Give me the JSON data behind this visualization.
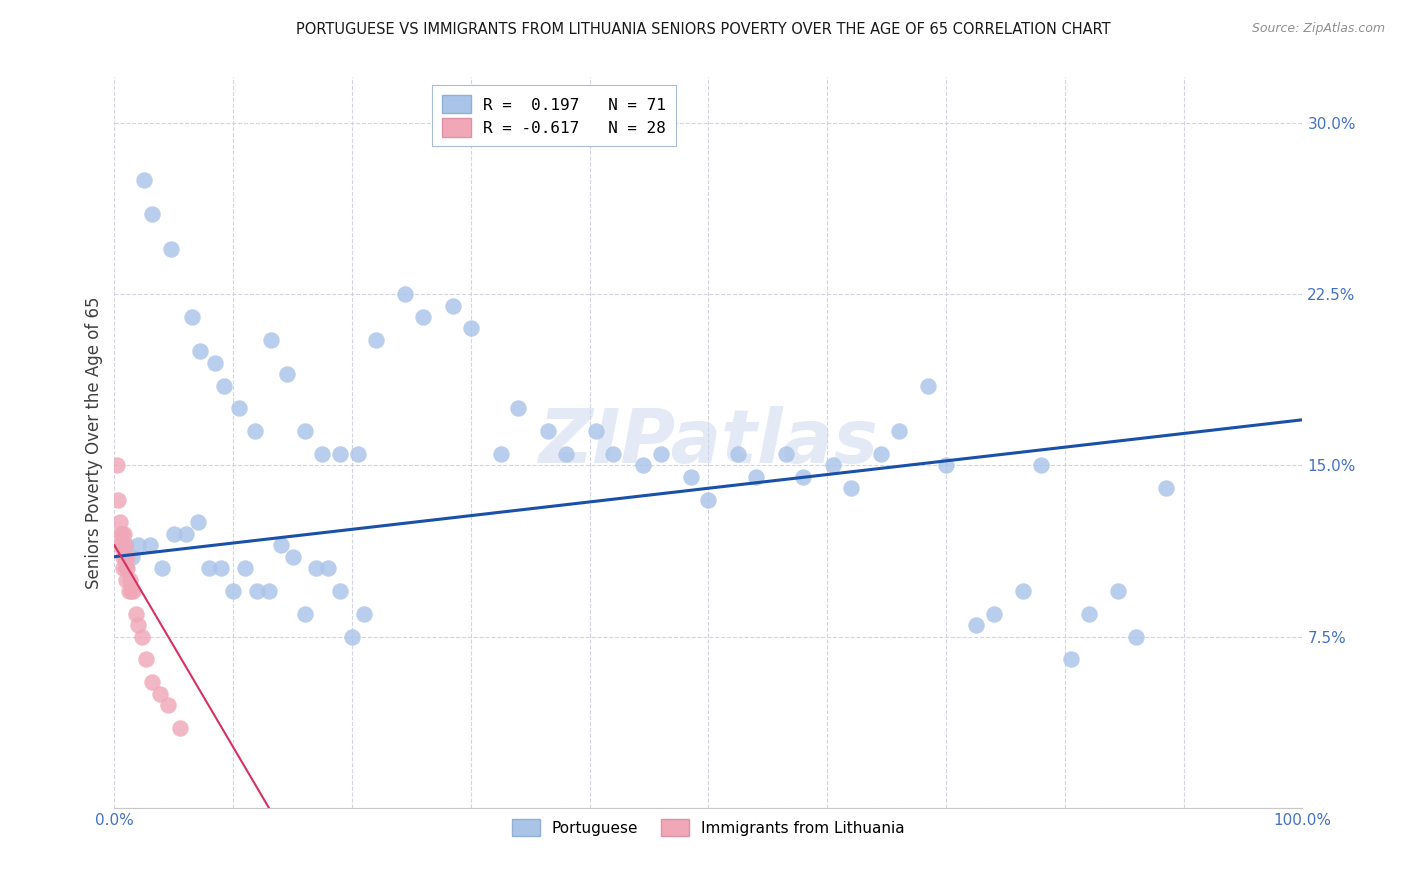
{
  "title": "PORTUGUESE VS IMMIGRANTS FROM LITHUANIA SENIORS POVERTY OVER THE AGE OF 65 CORRELATION CHART",
  "source": "Source: ZipAtlas.com",
  "ylabel": "Seniors Poverty Over the Age of 65",
  "xlim": [
    0,
    100
  ],
  "ylim": [
    0,
    32
  ],
  "ytick_vals": [
    0,
    7.5,
    15.0,
    22.5,
    30.0
  ],
  "ytick_labels": [
    "",
    "7.5%",
    "15.0%",
    "22.5%",
    "30.0%"
  ],
  "xtick_vals": [
    0,
    10,
    20,
    30,
    40,
    50,
    60,
    70,
    80,
    90,
    100
  ],
  "xtick_labels": [
    "0.0%",
    "",
    "",
    "",
    "",
    "",
    "",
    "",
    "",
    "",
    "100.0%"
  ],
  "blue_color": "#aac4e8",
  "pink_color": "#f0a8b8",
  "blue_line_color": "#1a50a8",
  "pink_line_color": "#d83060",
  "tick_color": "#4472c4",
  "grid_color": "#d0d0dc",
  "watermark_text": "ZIPatlas",
  "watermark_color": "#ccd8ee",
  "legend_top_R_blue": "R =  0.197   N = 71",
  "legend_top_R_pink": "R = -0.617   N = 28",
  "legend_bottom": [
    "Portuguese",
    "Immigrants from Lithuania"
  ],
  "blue_x": [
    2.5,
    3.2,
    4.8,
    6.5,
    7.2,
    8.5,
    9.2,
    10.5,
    11.8,
    13.2,
    14.5,
    16.0,
    17.5,
    19.0,
    20.5,
    22.0,
    24.5,
    26.0,
    28.5,
    30.0,
    32.5,
    34.0,
    36.5,
    38.0,
    40.5,
    42.0,
    44.5,
    46.0,
    48.5,
    50.0,
    52.5,
    54.0,
    56.5,
    58.0,
    60.5,
    62.0,
    64.5,
    66.0,
    68.5,
    70.0,
    72.5,
    74.0,
    76.5,
    78.0,
    80.5,
    82.0,
    84.5,
    86.0,
    88.5,
    1.0,
    1.5,
    2.0,
    3.0,
    4.0,
    5.0,
    6.0,
    7.0,
    8.0,
    9.0,
    10.0,
    11.0,
    12.0,
    13.0,
    14.0,
    15.0,
    16.0,
    17.0,
    18.0,
    19.0,
    20.0,
    21.0
  ],
  "blue_y": [
    27.5,
    26.0,
    24.5,
    21.5,
    20.0,
    19.5,
    18.5,
    17.5,
    16.5,
    20.5,
    19.0,
    16.5,
    15.5,
    15.5,
    15.5,
    20.5,
    22.5,
    21.5,
    22.0,
    21.0,
    15.5,
    17.5,
    16.5,
    15.5,
    16.5,
    15.5,
    15.0,
    15.5,
    14.5,
    13.5,
    15.5,
    14.5,
    15.5,
    14.5,
    15.0,
    14.0,
    15.5,
    16.5,
    18.5,
    15.0,
    8.0,
    8.5,
    9.5,
    15.0,
    6.5,
    8.5,
    9.5,
    7.5,
    14.0,
    11.5,
    11.0,
    11.5,
    11.5,
    10.5,
    12.0,
    12.0,
    12.5,
    10.5,
    10.5,
    9.5,
    10.5,
    9.5,
    9.5,
    11.5,
    11.0,
    8.5,
    10.5,
    10.5,
    9.5,
    7.5,
    8.5
  ],
  "pink_x": [
    0.2,
    0.3,
    0.4,
    0.5,
    0.55,
    0.6,
    0.65,
    0.7,
    0.75,
    0.8,
    0.85,
    0.9,
    0.95,
    1.0,
    1.05,
    1.1,
    1.2,
    1.3,
    1.4,
    1.6,
    1.8,
    2.0,
    2.3,
    2.7,
    3.2,
    3.8,
    4.5,
    5.5
  ],
  "pink_y": [
    15.0,
    13.5,
    11.5,
    12.5,
    12.0,
    12.0,
    11.5,
    11.0,
    10.5,
    12.0,
    11.0,
    11.5,
    10.0,
    10.5,
    11.0,
    10.5,
    9.5,
    10.0,
    9.5,
    9.5,
    8.5,
    8.0,
    7.5,
    6.5,
    5.5,
    5.0,
    4.5,
    3.5
  ]
}
